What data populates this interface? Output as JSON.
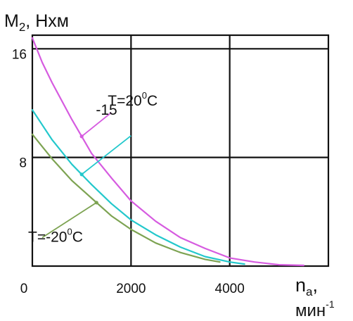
{
  "chart_data": {
    "type": "line",
    "y_axis_label": {
      "base": "M",
      "sub": "2",
      "rest": ", Нхм"
    },
    "x_axis_label": {
      "base": "n",
      "sub": "a",
      "rest": ","
    },
    "x_unit": {
      "base": "мин",
      "sup": "-1"
    },
    "x_ticks": [
      {
        "value": 0,
        "label": "0"
      },
      {
        "value": 2000,
        "label": "2000"
      },
      {
        "value": 4000,
        "label": "4000"
      }
    ],
    "y_ticks": [
      {
        "value": 8,
        "label": "8"
      },
      {
        "value": 16,
        "label": "16"
      }
    ],
    "xlim": [
      0,
      6000
    ],
    "ylim": [
      0,
      17
    ],
    "grid": true,
    "series": [
      {
        "name": "T=20°C",
        "color": "#d65be0",
        "label_parts": {
          "base": "T=20",
          "sup": "0",
          "rest": "C"
        },
        "x": [
          0,
          200,
          400,
          800,
          1200,
          1600,
          2000,
          2500,
          3000,
          3500,
          4000,
          4500,
          5000,
          5500
        ],
        "y": [
          16.8,
          15.0,
          13.5,
          10.8,
          8.3,
          6.5,
          4.8,
          3.3,
          2.1,
          1.3,
          0.6,
          0.3,
          0.1,
          0.05
        ]
      },
      {
        "name": "-15",
        "color": "#23c8cc",
        "label_parts": {
          "base": "-15",
          "sup": "",
          "rest": ""
        },
        "x": [
          0,
          200,
          400,
          800,
          1200,
          1600,
          2000,
          2500,
          3000,
          3500,
          4000,
          4300
        ],
        "y": [
          11.5,
          10.4,
          9.3,
          7.5,
          6.0,
          4.6,
          3.4,
          2.3,
          1.4,
          0.7,
          0.3,
          0.15
        ]
      },
      {
        "name": "T=-20°C",
        "color": "#7da352",
        "label_parts": {
          "base": "T=-20",
          "sup": "0",
          "rest": "C"
        },
        "x": [
          0,
          200,
          400,
          800,
          1200,
          1600,
          2000,
          2500,
          3000,
          3500,
          3800
        ],
        "y": [
          9.7,
          8.8,
          7.9,
          6.3,
          5.0,
          3.7,
          2.7,
          1.7,
          1.0,
          0.5,
          0.3
        ]
      }
    ],
    "annotations": [
      {
        "series": 0,
        "at_x": 1000,
        "label_x": 1600,
        "label_y": 11.3
      },
      {
        "series": 1,
        "at_x": 1000,
        "label_x": 2000,
        "label_y": 9.6
      },
      {
        "series": 2,
        "at_x": 1300,
        "label_x": 200,
        "label_y": 2.1
      }
    ]
  }
}
